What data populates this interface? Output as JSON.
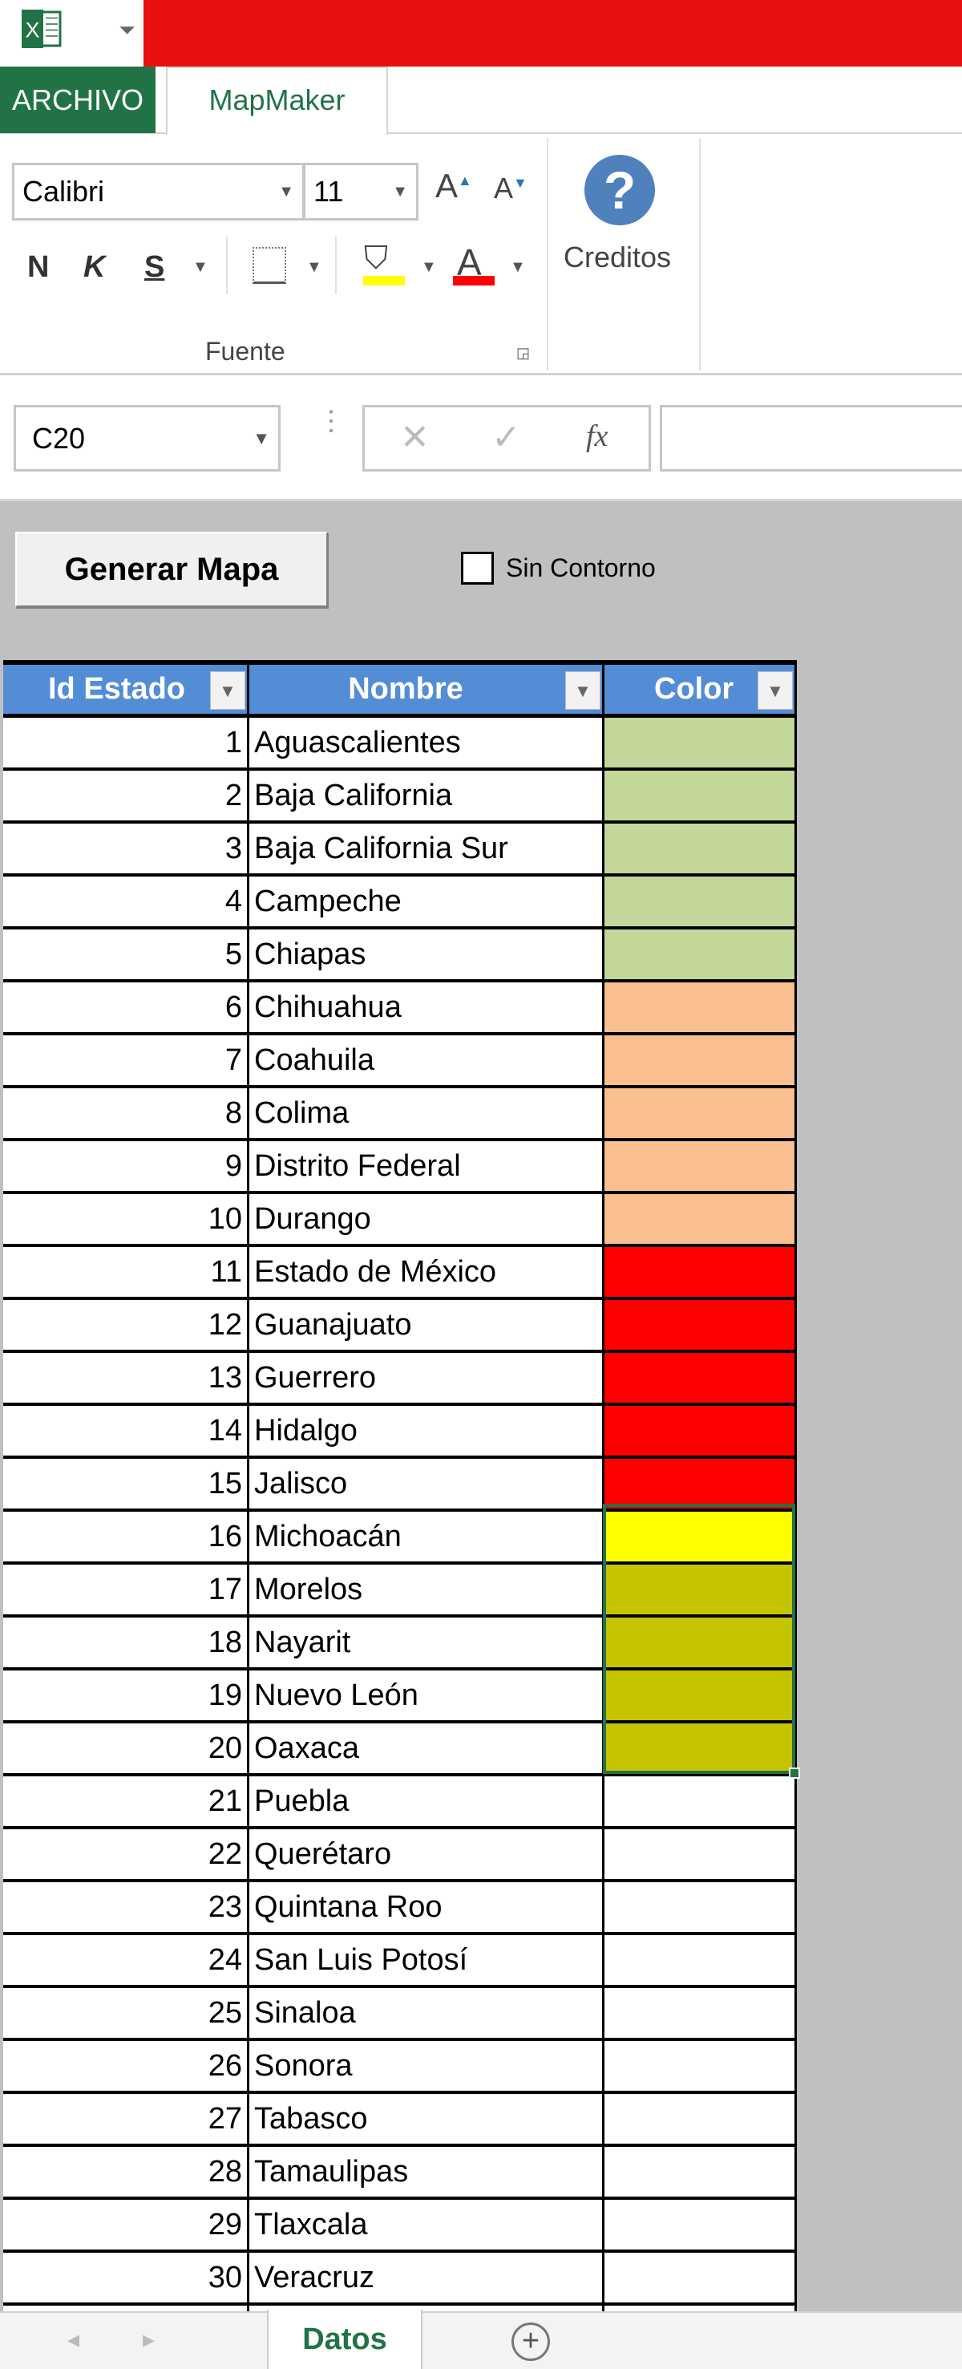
{
  "app": {
    "icon": "excel-icon",
    "qat_icon": "customize-quick-access-icon"
  },
  "tabs": {
    "file": "ARCHIVO",
    "active": "MapMaker"
  },
  "ribbon": {
    "font_name": "Calibri",
    "font_size": "11",
    "group_label": "Fuente",
    "credits_label": "Creditos",
    "bold": "N",
    "italic": "K",
    "underline": "S",
    "grow": "A",
    "shrink": "A",
    "font_color_letter": "A",
    "highlight_color": "#ffff00",
    "font_color": "#ff0000"
  },
  "formula_bar": {
    "name_box": "C20",
    "cancel": "✕",
    "enter": "✓",
    "fx": "fx",
    "value": ""
  },
  "sheet": {
    "generate_button": "Generar Mapa",
    "checkbox_label": "Sin Contorno",
    "checkbox_checked": false
  },
  "table": {
    "headers": [
      "Id Estado",
      "Nombre",
      "Color"
    ],
    "rows": [
      {
        "id": "1",
        "name": "Aguascalientes",
        "color": "#c4d79b"
      },
      {
        "id": "2",
        "name": "Baja California",
        "color": "#c4d79b"
      },
      {
        "id": "3",
        "name": "Baja California Sur",
        "color": "#c4d79b"
      },
      {
        "id": "4",
        "name": "Campeche",
        "color": "#c4d79b"
      },
      {
        "id": "5",
        "name": "Chiapas",
        "color": "#c4d79b"
      },
      {
        "id": "6",
        "name": "Chihuahua",
        "color": "#fabf8f"
      },
      {
        "id": "7",
        "name": "Coahuila",
        "color": "#fabf8f"
      },
      {
        "id": "8",
        "name": "Colima",
        "color": "#fabf8f"
      },
      {
        "id": "9",
        "name": "Distrito Federal",
        "color": "#fabf8f"
      },
      {
        "id": "10",
        "name": "Durango",
        "color": "#fabf8f"
      },
      {
        "id": "11",
        "name": "Estado de México",
        "color": "#ff0000"
      },
      {
        "id": "12",
        "name": "Guanajuato",
        "color": "#ff0000"
      },
      {
        "id": "13",
        "name": "Guerrero",
        "color": "#ff0000"
      },
      {
        "id": "14",
        "name": "Hidalgo",
        "color": "#ff0000"
      },
      {
        "id": "15",
        "name": "Jalisco",
        "color": "#ff0000"
      },
      {
        "id": "16",
        "name": "Michoacán",
        "color": "#ffff00"
      },
      {
        "id": "17",
        "name": "Morelos",
        "color": "#c4c400"
      },
      {
        "id": "18",
        "name": "Nayarit",
        "color": "#c4c400"
      },
      {
        "id": "19",
        "name": "Nuevo León",
        "color": "#c4c400"
      },
      {
        "id": "20",
        "name": "Oaxaca",
        "color": "#c4c400"
      },
      {
        "id": "21",
        "name": "Puebla",
        "color": "#ffffff"
      },
      {
        "id": "22",
        "name": "Querétaro",
        "color": "#ffffff"
      },
      {
        "id": "23",
        "name": "Quintana Roo",
        "color": "#ffffff"
      },
      {
        "id": "24",
        "name": "San Luis Potosí",
        "color": "#ffffff"
      },
      {
        "id": "25",
        "name": "Sinaloa",
        "color": "#ffffff"
      },
      {
        "id": "26",
        "name": "Sonora",
        "color": "#ffffff"
      },
      {
        "id": "27",
        "name": "Tabasco",
        "color": "#ffffff"
      },
      {
        "id": "28",
        "name": "Tamaulipas",
        "color": "#ffffff"
      },
      {
        "id": "29",
        "name": "Tlaxcala",
        "color": "#ffffff"
      },
      {
        "id": "30",
        "name": "Veracruz",
        "color": "#ffffff"
      }
    ]
  },
  "sheet_tabs": {
    "active": "Datos",
    "add": "+"
  },
  "colors": {
    "excel_green": "#217346",
    "header_blue": "#538dd5",
    "title_red": "#e81010"
  }
}
